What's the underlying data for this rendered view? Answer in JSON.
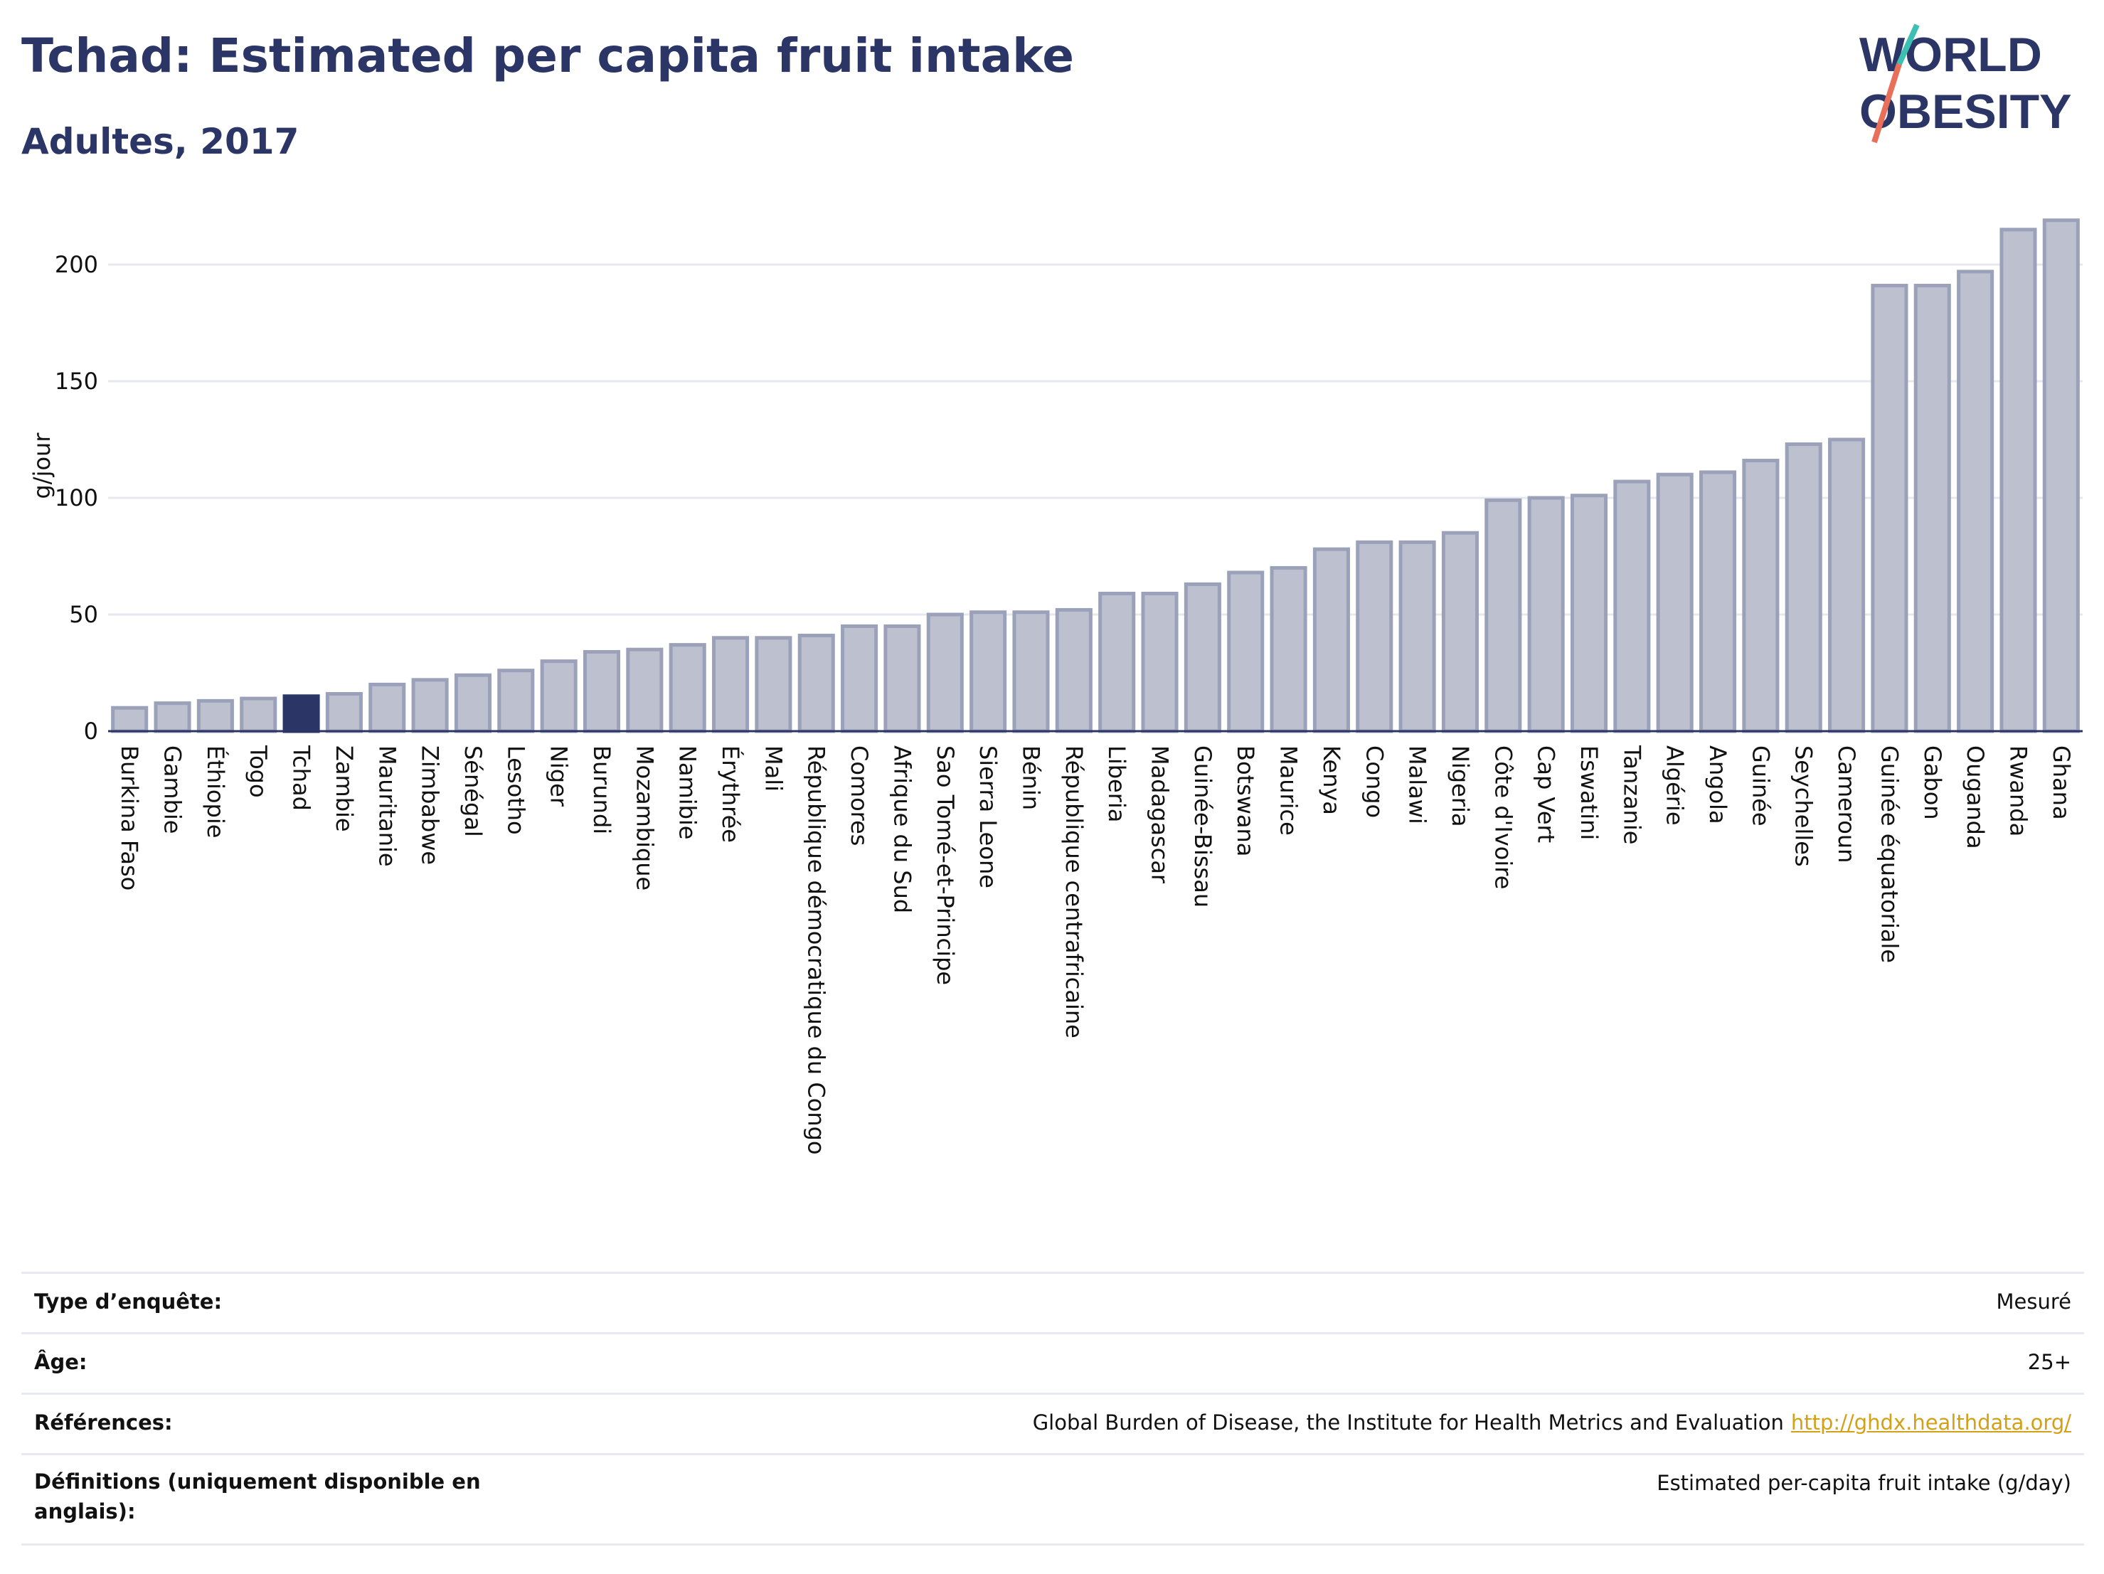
{
  "header": {
    "title": "Tchad: Estimated per capita fruit intake",
    "subtitle": "Adultes, 2017"
  },
  "logo": {
    "line1": "WORLD",
    "line2": "OBESITY"
  },
  "colors": {
    "bar_fill": "#bcc0cf",
    "bar_stroke": "#9ba1b8",
    "highlight": "#2b3566",
    "grid": "#e6e8ef",
    "logo_text": "#2b3566",
    "logo_teal": "#3dbfb3",
    "logo_coral": "#e8705a"
  },
  "chart_data": {
    "type": "bar",
    "title": "Tchad: Estimated per capita fruit intake",
    "subtitle": "Adultes, 2017",
    "ylabel": "g/jour",
    "xlabel": "",
    "ylim": [
      0,
      225
    ],
    "yticks": [
      0,
      50,
      100,
      150,
      200
    ],
    "grid": true,
    "highlight": "Tchad",
    "categories": [
      "Burkina Faso",
      "Gambie",
      "Éthiopie",
      "Togo",
      "Tchad",
      "Zambie",
      "Mauritanie",
      "Zimbabwe",
      "Sénégal",
      "Lesotho",
      "Niger",
      "Burundi",
      "Mozambique",
      "Namibie",
      "Érythrée",
      "Mali",
      "République démocratique du Congo",
      "Comores",
      "Afrique du Sud",
      "Sao Tomé-et-Principe",
      "Sierra Leone",
      "Bénin",
      "République centrafricaine",
      "Liberia",
      "Madagascar",
      "Guinée-Bissau",
      "Botswana",
      "Maurice",
      "Kenya",
      "Congo",
      "Malawi",
      "Nigeria",
      "Côte d'Ivoire",
      "Cap Vert",
      "Eswatini",
      "Tanzanie",
      "Algérie",
      "Angola",
      "Guinée",
      "Seychelles",
      "Cameroun",
      "Guinée équatoriale",
      "Gabon",
      "Ouganda",
      "Rwanda",
      "Ghana"
    ],
    "values": [
      10,
      12,
      13,
      14,
      15,
      16,
      20,
      22,
      24,
      26,
      30,
      34,
      35,
      37,
      40,
      40,
      41,
      45,
      45,
      50,
      51,
      51,
      52,
      59,
      59,
      63,
      68,
      70,
      78,
      81,
      81,
      85,
      99,
      100,
      101,
      107,
      110,
      111,
      116,
      123,
      125,
      191,
      191,
      197,
      215,
      219
    ]
  },
  "meta": [
    {
      "key": "Type d’enquête:",
      "value": "Mesuré"
    },
    {
      "key": "Âge:",
      "value": "25+"
    },
    {
      "key": "Références:",
      "value": "Global Burden of Disease, the Institute for Health Metrics and Evaluation",
      "link": "http://ghdx.healthdata.org/"
    },
    {
      "key": "Définitions (uniquement disponible en anglais):",
      "value": "Estimated per-capita fruit intake (g/day)"
    }
  ]
}
